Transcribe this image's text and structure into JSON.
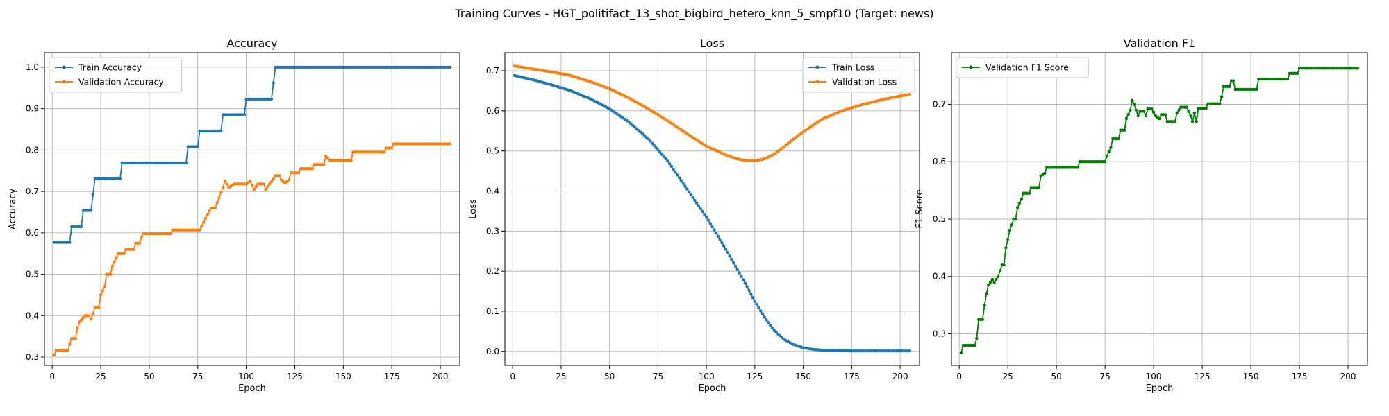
{
  "figure": {
    "suptitle": "Training Curves - HGT_politifact_13_shot_bigbird_hetero_knn_5_smpf10 (Target: news)"
  },
  "chart_data": [
    {
      "id": "accuracy",
      "type": "line",
      "title": "Accuracy",
      "xlabel": "Epoch",
      "ylabel": "Accuracy",
      "xlim": [
        -4,
        210
      ],
      "ylim": [
        0.28,
        1.035
      ],
      "xticks": [
        0,
        25,
        50,
        75,
        100,
        125,
        150,
        175,
        200
      ],
      "yticks": [
        0.3,
        0.4,
        0.5,
        0.6,
        0.7,
        0.8,
        0.9,
        1.0
      ],
      "ytick_decimals": 1,
      "grid": true,
      "legend_position": "upper-left",
      "series": [
        {
          "name": "Train Accuracy",
          "color": "#1f77b4",
          "epochs": [
            1,
            205
          ],
          "knots": [
            [
              1,
              0.577
            ],
            [
              9,
              0.577
            ],
            [
              10,
              0.615
            ],
            [
              15,
              0.615
            ],
            [
              16,
              0.654
            ],
            [
              20,
              0.654
            ],
            [
              21,
              0.692
            ],
            [
              22,
              0.731
            ],
            [
              35,
              0.731
            ],
            [
              36,
              0.769
            ],
            [
              69,
              0.769
            ],
            [
              70,
              0.808
            ],
            [
              75,
              0.808
            ],
            [
              76,
              0.846
            ],
            [
              87,
              0.846
            ],
            [
              88,
              0.885
            ],
            [
              99,
              0.885
            ],
            [
              100,
              0.923
            ],
            [
              113,
              0.923
            ],
            [
              114,
              0.962
            ],
            [
              115,
              1.0
            ],
            [
              205,
              1.0
            ]
          ]
        },
        {
          "name": "Validation Accuracy",
          "color": "#ff7f0e",
          "epochs": [
            1,
            205
          ],
          "knots": [
            [
              1,
              0.305
            ],
            [
              2,
              0.316
            ],
            [
              8,
              0.316
            ],
            [
              10,
              0.345
            ],
            [
              12,
              0.345
            ],
            [
              13,
              0.37
            ],
            [
              14,
              0.385
            ],
            [
              16,
              0.395
            ],
            [
              17,
              0.4
            ],
            [
              19,
              0.4
            ],
            [
              20,
              0.392
            ],
            [
              21,
              0.405
            ],
            [
              22,
              0.42
            ],
            [
              24,
              0.42
            ],
            [
              25,
              0.45
            ],
            [
              27,
              0.47
            ],
            [
              28,
              0.5
            ],
            [
              30,
              0.5
            ],
            [
              31,
              0.52
            ],
            [
              33,
              0.54
            ],
            [
              34,
              0.55
            ],
            [
              37,
              0.55
            ],
            [
              38,
              0.56
            ],
            [
              42,
              0.56
            ],
            [
              43,
              0.575
            ],
            [
              45,
              0.575
            ],
            [
              46,
              0.59
            ],
            [
              47,
              0.598
            ],
            [
              61,
              0.598
            ],
            [
              62,
              0.607
            ],
            [
              76,
              0.607
            ],
            [
              78,
              0.625
            ],
            [
              80,
              0.645
            ],
            [
              82,
              0.66
            ],
            [
              84,
              0.66
            ],
            [
              86,
              0.685
            ],
            [
              88,
              0.71
            ],
            [
              89,
              0.725
            ],
            [
              91,
              0.71
            ],
            [
              94,
              0.718
            ],
            [
              100,
              0.718
            ],
            [
              102,
              0.725
            ],
            [
              104,
              0.705
            ],
            [
              106,
              0.718
            ],
            [
              109,
              0.718
            ],
            [
              110,
              0.705
            ],
            [
              112,
              0.718
            ],
            [
              114,
              0.73
            ],
            [
              115,
              0.738
            ],
            [
              117,
              0.738
            ],
            [
              118,
              0.728
            ],
            [
              120,
              0.72
            ],
            [
              122,
              0.728
            ],
            [
              123,
              0.745
            ],
            [
              127,
              0.745
            ],
            [
              128,
              0.755
            ],
            [
              134,
              0.755
            ],
            [
              135,
              0.765
            ],
            [
              140,
              0.765
            ],
            [
              141,
              0.785
            ],
            [
              143,
              0.775
            ],
            [
              154,
              0.775
            ],
            [
              155,
              0.795
            ],
            [
              171,
              0.795
            ],
            [
              172,
              0.805
            ],
            [
              175,
              0.805
            ],
            [
              176,
              0.815
            ],
            [
              205,
              0.815
            ]
          ]
        }
      ]
    },
    {
      "id": "loss",
      "type": "line",
      "title": "Loss",
      "xlabel": "Epoch",
      "ylabel": "Loss",
      "xlim": [
        -4,
        210
      ],
      "ylim": [
        -0.035,
        0.745
      ],
      "xticks": [
        0,
        25,
        50,
        75,
        100,
        125,
        150,
        175,
        200
      ],
      "yticks": [
        0.0,
        0.1,
        0.2,
        0.3,
        0.4,
        0.5,
        0.6,
        0.7
      ],
      "ytick_decimals": 1,
      "grid": true,
      "legend_position": "upper-right",
      "series": [
        {
          "name": "Train Loss",
          "color": "#1f77b4",
          "epochs": [
            1,
            205
          ],
          "knots": [
            [
              1,
              0.688
            ],
            [
              10,
              0.678
            ],
            [
              20,
              0.665
            ],
            [
              30,
              0.65
            ],
            [
              40,
              0.63
            ],
            [
              50,
              0.605
            ],
            [
              60,
              0.572
            ],
            [
              70,
              0.53
            ],
            [
              80,
              0.475
            ],
            [
              90,
              0.405
            ],
            [
              100,
              0.335
            ],
            [
              110,
              0.255
            ],
            [
              120,
              0.17
            ],
            [
              125,
              0.125
            ],
            [
              130,
              0.085
            ],
            [
              135,
              0.052
            ],
            [
              140,
              0.03
            ],
            [
              145,
              0.017
            ],
            [
              150,
              0.009
            ],
            [
              155,
              0.005
            ],
            [
              160,
              0.003
            ],
            [
              165,
              0.002
            ],
            [
              175,
              0.001
            ],
            [
              205,
              0.001
            ]
          ]
        },
        {
          "name": "Validation Loss",
          "color": "#ff7f0e",
          "epochs": [
            1,
            205
          ],
          "knots": [
            [
              1,
              0.712
            ],
            [
              20,
              0.697
            ],
            [
              30,
              0.688
            ],
            [
              40,
              0.673
            ],
            [
              50,
              0.655
            ],
            [
              60,
              0.632
            ],
            [
              70,
              0.605
            ],
            [
              80,
              0.575
            ],
            [
              90,
              0.543
            ],
            [
              100,
              0.512
            ],
            [
              110,
              0.49
            ],
            [
              115,
              0.481
            ],
            [
              120,
              0.476
            ],
            [
              125,
              0.475
            ],
            [
              130,
              0.48
            ],
            [
              135,
              0.492
            ],
            [
              140,
              0.51
            ],
            [
              145,
              0.53
            ],
            [
              150,
              0.548
            ],
            [
              160,
              0.58
            ],
            [
              170,
              0.6
            ],
            [
              180,
              0.615
            ],
            [
              190,
              0.627
            ],
            [
              200,
              0.637
            ],
            [
              205,
              0.641
            ]
          ]
        }
      ]
    },
    {
      "id": "f1",
      "type": "line",
      "title": "Validation F1",
      "xlabel": "Epoch",
      "ylabel": "F1 Score",
      "xlim": [
        -4,
        210
      ],
      "ylim": [
        0.245,
        0.79
      ],
      "xticks": [
        0,
        25,
        50,
        75,
        100,
        125,
        150,
        175,
        200
      ],
      "yticks": [
        0.3,
        0.4,
        0.5,
        0.6,
        0.7
      ],
      "ytick_decimals": 1,
      "grid": true,
      "legend_position": "upper-left",
      "series": [
        {
          "name": "Validation F1 Score",
          "color": "#008000",
          "epochs": [
            1,
            205
          ],
          "knots": [
            [
              1,
              0.267
            ],
            [
              2,
              0.28
            ],
            [
              8,
              0.28
            ],
            [
              9,
              0.292
            ],
            [
              10,
              0.325
            ],
            [
              12,
              0.325
            ],
            [
              13,
              0.35
            ],
            [
              14,
              0.37
            ],
            [
              15,
              0.385
            ],
            [
              17,
              0.395
            ],
            [
              18,
              0.39
            ],
            [
              19,
              0.395
            ],
            [
              20,
              0.4
            ],
            [
              22,
              0.42
            ],
            [
              23,
              0.42
            ],
            [
              24,
              0.45
            ],
            [
              26,
              0.48
            ],
            [
              28,
              0.5
            ],
            [
              29,
              0.5
            ],
            [
              30,
              0.52
            ],
            [
              32,
              0.535
            ],
            [
              33,
              0.545
            ],
            [
              36,
              0.545
            ],
            [
              37,
              0.555
            ],
            [
              41,
              0.555
            ],
            [
              42,
              0.575
            ],
            [
              44,
              0.58
            ],
            [
              45,
              0.59
            ],
            [
              61,
              0.59
            ],
            [
              62,
              0.6
            ],
            [
              75,
              0.6
            ],
            [
              76,
              0.61
            ],
            [
              78,
              0.625
            ],
            [
              79,
              0.64
            ],
            [
              82,
              0.64
            ],
            [
              83,
              0.655
            ],
            [
              85,
              0.655
            ],
            [
              86,
              0.675
            ],
            [
              88,
              0.69
            ],
            [
              89,
              0.707
            ],
            [
              90,
              0.7
            ],
            [
              91,
              0.69
            ],
            [
              92,
              0.68
            ],
            [
              93,
              0.688
            ],
            [
              95,
              0.688
            ],
            [
              96,
              0.68
            ],
            [
              97,
              0.692
            ],
            [
              99,
              0.692
            ],
            [
              101,
              0.68
            ],
            [
              103,
              0.675
            ],
            [
              104,
              0.682
            ],
            [
              106,
              0.682
            ],
            [
              107,
              0.67
            ],
            [
              111,
              0.67
            ],
            [
              112,
              0.685
            ],
            [
              114,
              0.695
            ],
            [
              117,
              0.695
            ],
            [
              119,
              0.68
            ],
            [
              120,
              0.67
            ],
            [
              121,
              0.685
            ],
            [
              122,
              0.67
            ],
            [
              123,
              0.693
            ],
            [
              127,
              0.693
            ],
            [
              128,
              0.701
            ],
            [
              134,
              0.701
            ],
            [
              135,
              0.713
            ],
            [
              136,
              0.731
            ],
            [
              139,
              0.731
            ],
            [
              140,
              0.741
            ],
            [
              141,
              0.741
            ],
            [
              142,
              0.726
            ],
            [
              153,
              0.726
            ],
            [
              154,
              0.744
            ],
            [
              169,
              0.744
            ],
            [
              170,
              0.754
            ],
            [
              174,
              0.754
            ],
            [
              175,
              0.763
            ],
            [
              205,
              0.763
            ]
          ]
        }
      ]
    }
  ]
}
